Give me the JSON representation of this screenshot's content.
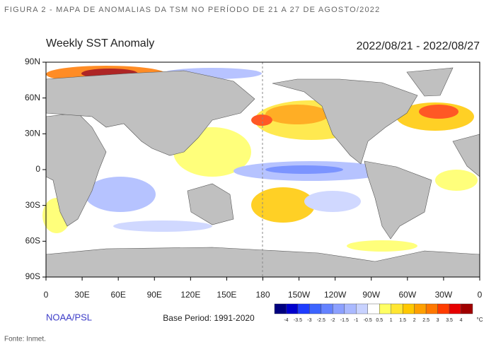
{
  "caption": "FIGURA 2 - MAPA DE ANOMALIAS DA TSM NO PERÍODO DE 21 A 27 DE AGOSTO/2022",
  "map": {
    "title": "Weekly SST Anomaly",
    "period": "2022/08/21 - 2022/08/27",
    "lat_labels": [
      "90N",
      "60N",
      "30N",
      "0",
      "30S",
      "60S",
      "90S"
    ],
    "lon_labels": [
      "0",
      "30E",
      "60E",
      "90E",
      "120E",
      "150E",
      "180",
      "150W",
      "120W",
      "90W",
      "60W",
      "30W",
      "0"
    ],
    "credit": "NOAA/PSL",
    "base_period": "Base Period: 1991-2020",
    "colorbar": {
      "colors": [
        "#00007f",
        "#0000cd",
        "#1e3cff",
        "#3c64ff",
        "#6482ff",
        "#8ca0ff",
        "#aab9ff",
        "#c8d2ff",
        "#ffffff",
        "#ffff64",
        "#ffe632",
        "#ffc800",
        "#ffa000",
        "#ff7800",
        "#ff3c00",
        "#e60000",
        "#a00000"
      ],
      "labels": [
        "-4",
        "-3.5",
        "-3",
        "-2.5",
        "-2",
        "-1.5",
        "-1",
        "-0.5",
        "0.5",
        "1",
        "1.5",
        "2",
        "2.5",
        "3",
        "3.5",
        "4"
      ],
      "unit": "°C"
    }
  },
  "source": "Fonte: Inmet."
}
